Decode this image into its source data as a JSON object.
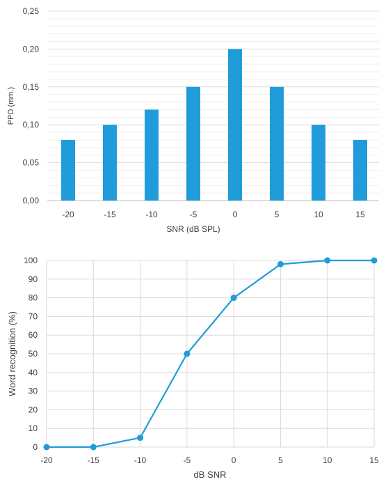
{
  "chart_data": [
    {
      "type": "bar",
      "categories": [
        "-20",
        "-15",
        "-10",
        "-5",
        "0",
        "5",
        "10",
        "15"
      ],
      "values": [
        0.08,
        0.1,
        0.12,
        0.15,
        0.2,
        0.15,
        0.1,
        0.08
      ],
      "xlabel": "SNR (dB SPL)",
      "ylabel": "PPD (mm.)",
      "ylim": [
        0,
        0.25
      ],
      "yticks": [
        "0,00",
        "0,05",
        "0,10",
        "0,15",
        "0,20",
        "0,25"
      ],
      "grid": true,
      "minor_grid": true,
      "color": "#1f9cd9"
    },
    {
      "type": "line",
      "x": [
        -20,
        -15,
        -10,
        -5,
        0,
        5,
        10,
        15
      ],
      "values": [
        0,
        0,
        5,
        50,
        80,
        98,
        100,
        100
      ],
      "xlabel": "dB SNR",
      "ylabel": "Word recognition (%)",
      "xlim": [
        -20,
        15
      ],
      "ylim": [
        0,
        100
      ],
      "xticks": [
        "-20",
        "-15",
        "-10",
        "-5",
        "0",
        "5",
        "10",
        "15"
      ],
      "yticks": [
        "0",
        "10",
        "20",
        "30",
        "40",
        "50",
        "60",
        "70",
        "80",
        "90",
        "100"
      ],
      "grid": true,
      "markers": true,
      "color": "#1f9cd9"
    }
  ]
}
